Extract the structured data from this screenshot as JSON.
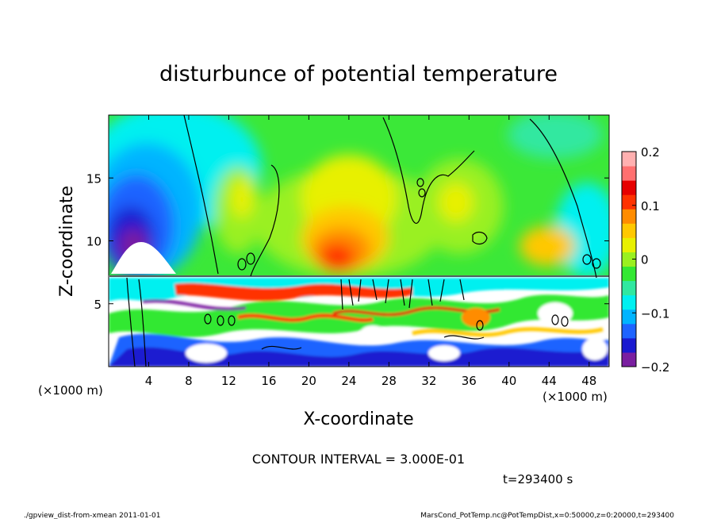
{
  "chart_data": {
    "type": "heatmap",
    "title": "disturbunce of potential temperature",
    "xlabel": "X-coordinate",
    "ylabel": "Z-coordinate",
    "x_unit": "(×1000 m)",
    "y_unit": "(×1000 m)",
    "xlim": [
      0,
      50
    ],
    "ylim": [
      0,
      20
    ],
    "x_ticks": [
      4,
      8,
      12,
      16,
      20,
      24,
      28,
      32,
      36,
      40,
      44,
      48
    ],
    "y_ticks": [
      5,
      10,
      15
    ],
    "colorbar": {
      "range": [
        -0.2,
        0.2
      ],
      "tick_values": [
        -0.2,
        -0.1,
        0,
        0.1,
        0.2
      ],
      "tick_labels": [
        "−0.2",
        "−0.1",
        "0",
        "0.1",
        "0.2"
      ],
      "colors": [
        "#7a1fa0",
        "#1a1ad0",
        "#1e64ff",
        "#00b4ff",
        "#00f0f0",
        "#30e8a0",
        "#33e833",
        "#9af020",
        "#e8f000",
        "#ffc800",
        "#ff8c00",
        "#ff3200",
        "#e60000",
        "#ff7070",
        "#ffb0b0"
      ]
    },
    "contour_interval_text": "CONTOUR INTERVAL = 3.000E-01",
    "time_text": "t=293400 s"
  },
  "footer": {
    "left": "./gpview_dist-from-xmean  2011-01-01",
    "right": "MarsCond_PotTemp.nc@PotTempDist,x=0:50000,z=0:20000,t=293400"
  }
}
